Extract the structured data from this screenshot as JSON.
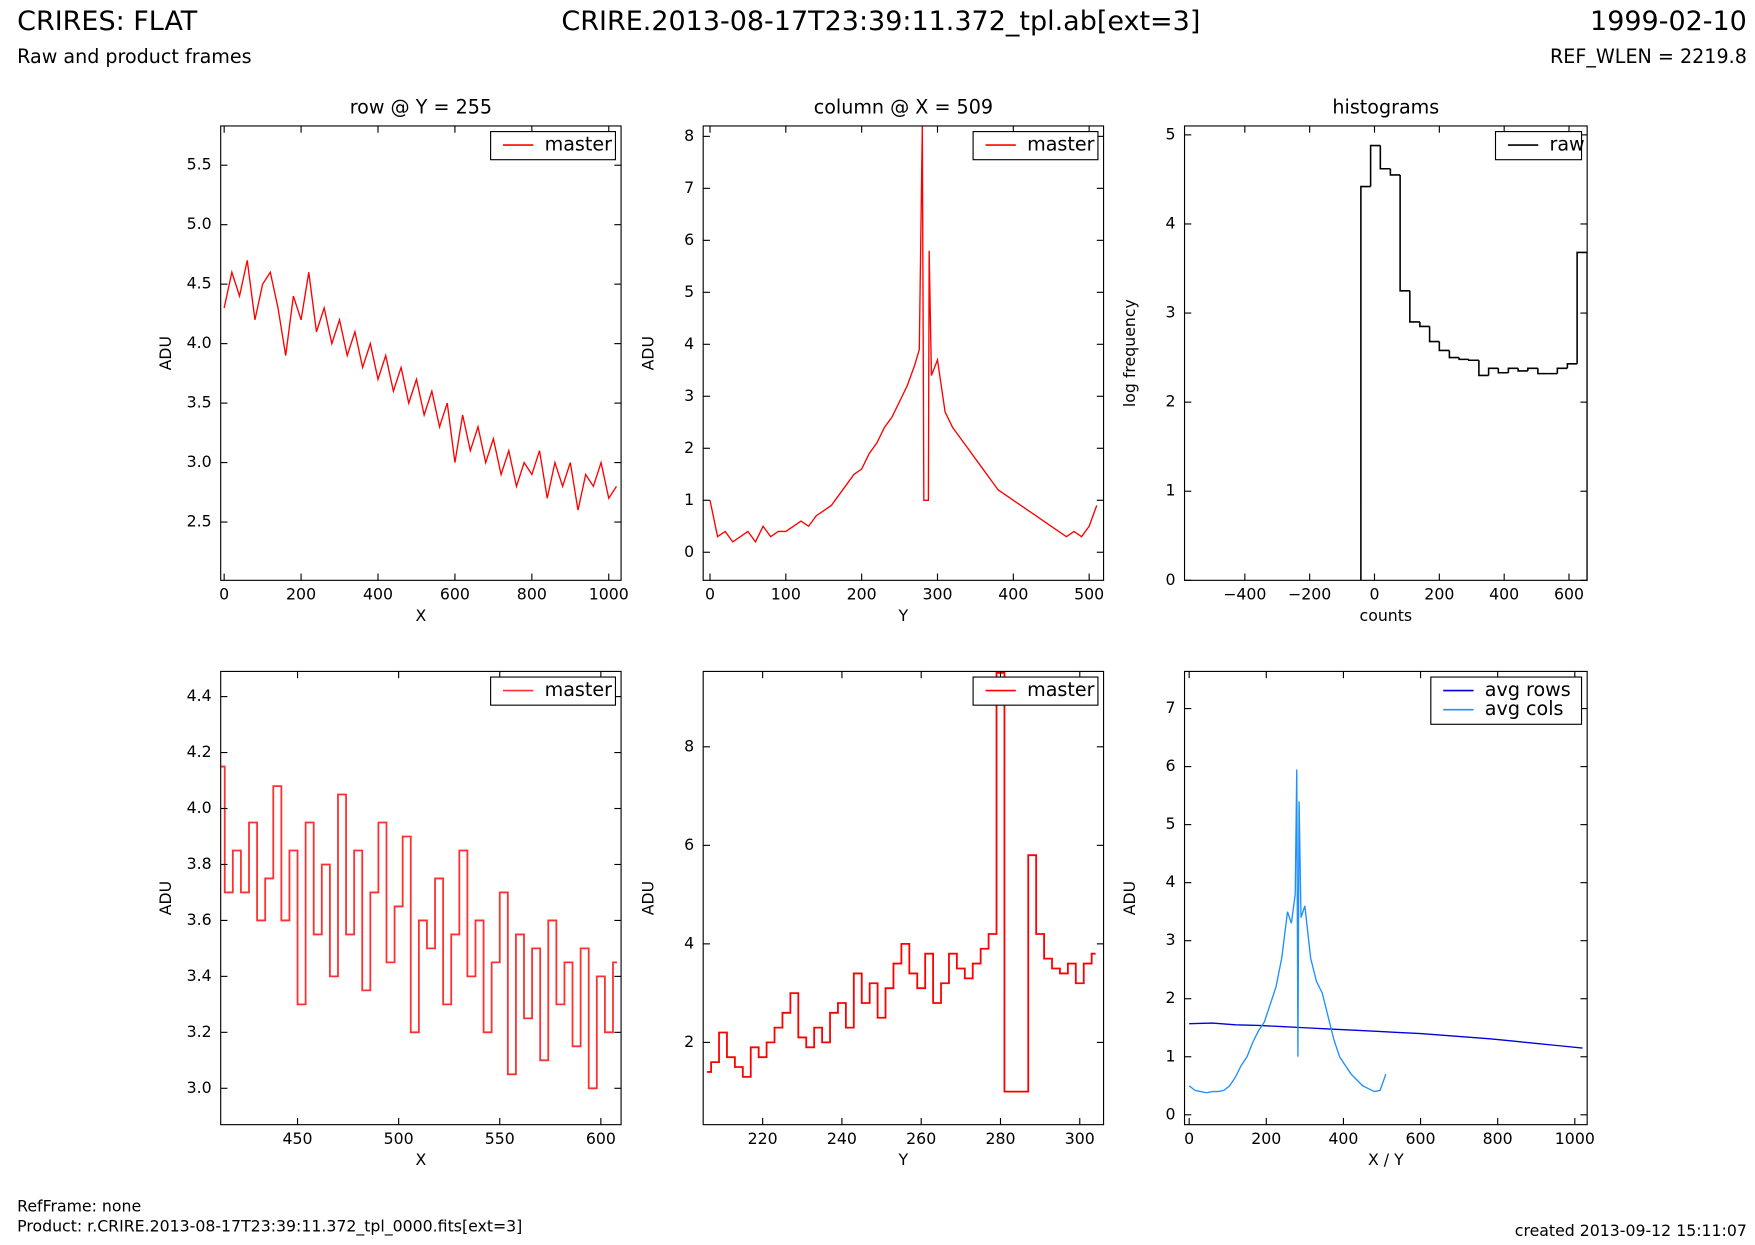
{
  "header": {
    "title": "CRIRES: FLAT",
    "subtitle": "Raw and product frames",
    "file": "CRIRE.2013-08-17T23:39:11.372_tpl.ab[ext=3]",
    "date": "1999-02-10",
    "ref_wlen": "REF_WLEN = 2219.8"
  },
  "footer": {
    "refframe": "RefFrame: none",
    "product": "Product: r.CRIRE.2013-08-17T23:39:11.372_tpl_0000.fits[ext=3]",
    "created": "created 2013-09-12 15:11:07"
  },
  "chart_data": [
    {
      "type": "line",
      "title": "row @ Y = 255",
      "xlabel": "X",
      "ylabel": "ADU",
      "xlim": [
        -9,
        1032
      ],
      "ylim": [
        2.01,
        5.83
      ],
      "xticks": [
        0,
        200,
        400,
        600,
        800,
        1000
      ],
      "yticks": [
        2.5,
        {
          "value": 3,
          "label": "3.0"
        },
        3.5,
        {
          "value": 4,
          "label": "4.0"
        },
        4.5,
        {
          "value": 5,
          "label": "5.0"
        },
        5.5
      ],
      "legend": "upper right",
      "series": [
        {
          "name": "master",
          "color": "#ff0000",
          "x": [
            0,
            20,
            40,
            60,
            80,
            100,
            120,
            140,
            160,
            180,
            200,
            220,
            240,
            260,
            280,
            300,
            320,
            340,
            360,
            380,
            400,
            420,
            440,
            460,
            480,
            500,
            520,
            540,
            560,
            580,
            600,
            620,
            640,
            660,
            680,
            700,
            720,
            740,
            760,
            780,
            800,
            820,
            840,
            860,
            880,
            900,
            920,
            940,
            960,
            980,
            1000,
            1020
          ],
          "values": [
            4.3,
            4.6,
            4.4,
            4.7,
            4.2,
            4.5,
            4.6,
            4.3,
            3.9,
            4.4,
            4.2,
            4.6,
            4.1,
            4.3,
            4.0,
            4.2,
            3.9,
            4.1,
            3.8,
            4.0,
            3.7,
            3.9,
            3.6,
            3.8,
            3.5,
            3.7,
            3.4,
            3.6,
            3.3,
            3.5,
            3.0,
            3.4,
            3.1,
            3.3,
            3.0,
            3.2,
            2.9,
            3.1,
            2.8,
            3.0,
            2.9,
            3.1,
            2.7,
            3.0,
            2.8,
            3.0,
            2.6,
            2.9,
            2.8,
            3.0,
            2.7,
            2.8
          ]
        }
      ]
    },
    {
      "type": "line",
      "title": "column @ X = 509",
      "xlabel": "Y",
      "ylabel": "ADU",
      "xlim": [
        -9,
        519
      ],
      "ylim": [
        -0.54,
        8.2
      ],
      "xticks": [
        0,
        100,
        200,
        300,
        400,
        500
      ],
      "yticks": [
        0,
        1,
        2,
        3,
        4,
        5,
        6,
        7,
        8
      ],
      "legend": "upper right",
      "series": [
        {
          "name": "master",
          "color": "#ff0000",
          "x": [
            0,
            10,
            20,
            30,
            40,
            50,
            60,
            70,
            80,
            90,
            100,
            110,
            120,
            130,
            140,
            150,
            160,
            170,
            180,
            190,
            200,
            210,
            220,
            230,
            240,
            250,
            260,
            270,
            276,
            280,
            282,
            288,
            289,
            292,
            300,
            310,
            320,
            330,
            340,
            350,
            360,
            370,
            380,
            390,
            400,
            410,
            420,
            430,
            440,
            450,
            460,
            470,
            480,
            490,
            500,
            510
          ],
          "values": [
            1.0,
            0.3,
            0.4,
            0.2,
            0.3,
            0.4,
            0.2,
            0.5,
            0.3,
            0.4,
            0.4,
            0.5,
            0.6,
            0.5,
            0.7,
            0.8,
            0.9,
            1.1,
            1.3,
            1.5,
            1.6,
            1.9,
            2.1,
            2.4,
            2.6,
            2.9,
            3.2,
            3.6,
            3.9,
            8.2,
            1.0,
            1.0,
            5.8,
            3.4,
            3.7,
            2.7,
            2.4,
            2.2,
            2.0,
            1.8,
            1.6,
            1.4,
            1.2,
            1.1,
            1.0,
            0.9,
            0.8,
            0.7,
            0.6,
            0.5,
            0.4,
            0.3,
            0.4,
            0.3,
            0.5,
            0.9
          ]
        }
      ]
    },
    {
      "type": "histogram",
      "title": "histograms",
      "xlabel": "counts",
      "ylabel": "log frequency",
      "xlim": [
        -586,
        656
      ],
      "ylim": [
        0,
        5.1
      ],
      "xticks": [
        {
          "value": -400,
          "label": "−400"
        },
        {
          "value": -200,
          "label": "−200"
        },
        0,
        200,
        400,
        600
      ],
      "yticks": [
        0,
        1,
        2,
        3,
        4,
        5
      ],
      "legend": "upper right",
      "bins": [
        -42,
        -12,
        18,
        49,
        79,
        109,
        140,
        170,
        200,
        231,
        261,
        291,
        322,
        352,
        382,
        413,
        443,
        473,
        504,
        534,
        564,
        595,
        625,
        656
      ],
      "series": [
        {
          "name": "raw",
          "color": "#000000",
          "values": [
            4.42,
            4.88,
            4.62,
            4.55,
            3.25,
            2.9,
            2.85,
            2.68,
            2.58,
            2.5,
            2.48,
            2.47,
            2.3,
            2.38,
            2.33,
            2.38,
            2.35,
            2.38,
            2.32,
            2.32,
            2.38,
            2.43,
            3.68
          ]
        }
      ]
    },
    {
      "type": "line",
      "drawstyle": "steps",
      "xlabel": "X",
      "ylabel": "ADU",
      "xlim": [
        412,
        610
      ],
      "ylim": [
        2.87,
        4.49
      ],
      "xticks": [
        450,
        500,
        550,
        600
      ],
      "yticks": [
        {
          "value": 3,
          "label": "3.0"
        },
        3.2,
        3.4,
        3.6,
        3.8,
        {
          "value": 4,
          "label": "4.0"
        },
        4.2,
        4.4
      ],
      "legend": "upper right",
      "series": [
        {
          "name": "master",
          "color": "#ff3030",
          "x": [
            412,
            416,
            420,
            424,
            428,
            432,
            436,
            440,
            444,
            448,
            452,
            456,
            460,
            464,
            468,
            472,
            476,
            480,
            484,
            488,
            492,
            496,
            500,
            504,
            508,
            512,
            516,
            520,
            524,
            528,
            532,
            536,
            540,
            544,
            548,
            552,
            556,
            560,
            564,
            568,
            572,
            576,
            580,
            584,
            588,
            592,
            596,
            600,
            604,
            608
          ],
          "values": [
            4.15,
            3.7,
            3.85,
            3.7,
            3.95,
            3.6,
            3.75,
            4.08,
            3.6,
            3.85,
            3.3,
            3.95,
            3.55,
            3.8,
            3.4,
            4.05,
            3.55,
            3.85,
            3.35,
            3.7,
            3.95,
            3.45,
            3.65,
            3.9,
            3.2,
            3.6,
            3.5,
            3.75,
            3.3,
            3.55,
            3.85,
            3.4,
            3.6,
            3.2,
            3.45,
            3.7,
            3.05,
            3.55,
            3.25,
            3.5,
            3.1,
            3.6,
            3.3,
            3.45,
            3.15,
            3.5,
            3.0,
            3.4,
            3.2,
            3.45
          ]
        }
      ]
    },
    {
      "type": "line",
      "drawstyle": "steps",
      "xlabel": "Y",
      "ylabel": "ADU",
      "xlim": [
        205,
        306
      ],
      "ylim": [
        0.33,
        9.53
      ],
      "xticks": [
        220,
        240,
        260,
        280,
        300
      ],
      "yticks": [
        2,
        4,
        6,
        8
      ],
      "legend": "upper right",
      "series": [
        {
          "name": "master",
          "color": "#ff0000",
          "x": [
            206,
            208,
            210,
            212,
            214,
            216,
            218,
            220,
            222,
            224,
            226,
            228,
            230,
            232,
            234,
            236,
            238,
            240,
            242,
            244,
            246,
            248,
            250,
            252,
            254,
            256,
            258,
            260,
            262,
            264,
            266,
            268,
            270,
            272,
            274,
            276,
            278,
            280,
            282,
            284,
            286,
            288,
            290,
            292,
            294,
            296,
            298,
            300,
            302,
            304
          ],
          "values": [
            1.4,
            1.6,
            2.2,
            1.7,
            1.5,
            1.3,
            1.9,
            1.7,
            2.0,
            2.3,
            2.6,
            3.0,
            2.1,
            1.9,
            2.3,
            2.0,
            2.6,
            2.8,
            2.3,
            3.4,
            2.8,
            3.2,
            2.5,
            3.1,
            3.6,
            4.0,
            3.4,
            3.1,
            3.8,
            2.8,
            3.2,
            3.8,
            3.5,
            3.3,
            3.6,
            3.9,
            4.2,
            9.5,
            1.0,
            1.0,
            1.0,
            5.8,
            4.2,
            3.7,
            3.5,
            3.4,
            3.6,
            3.2,
            3.6,
            3.8
          ]
        }
      ]
    },
    {
      "type": "line",
      "xlabel": "X / Y",
      "ylabel": "ADU",
      "xlim": [
        -12,
        1032
      ],
      "ylim": [
        -0.17,
        7.64
      ],
      "xticks": [
        0,
        200,
        400,
        600,
        800,
        1000
      ],
      "yticks": [
        0,
        1,
        2,
        3,
        4,
        5,
        6,
        7
      ],
      "legend": "upper right",
      "series": [
        {
          "name": "avg rows",
          "color": "#0000dd",
          "x": [
            0,
            60,
            120,
            180,
            240,
            300,
            360,
            420,
            480,
            540,
            600,
            660,
            720,
            780,
            840,
            900,
            960,
            1020
          ],
          "values": [
            1.57,
            1.58,
            1.55,
            1.54,
            1.52,
            1.5,
            1.48,
            1.46,
            1.44,
            1.42,
            1.4,
            1.37,
            1.34,
            1.31,
            1.27,
            1.23,
            1.19,
            1.15
          ]
        },
        {
          "name": "avg cols",
          "color": "#1e90ff",
          "x": [
            0,
            15,
            30,
            45,
            60,
            75,
            90,
            105,
            120,
            135,
            150,
            165,
            180,
            195,
            210,
            225,
            240,
            255,
            265,
            275,
            279,
            282,
            285,
            290,
            300,
            315,
            330,
            345,
            360,
            375,
            390,
            405,
            420,
            435,
            450,
            465,
            480,
            495,
            510
          ],
          "values": [
            0.5,
            0.42,
            0.4,
            0.38,
            0.4,
            0.4,
            0.42,
            0.5,
            0.65,
            0.85,
            1.0,
            1.25,
            1.45,
            1.6,
            1.9,
            2.2,
            2.7,
            3.5,
            3.3,
            3.8,
            5.95,
            1.0,
            5.4,
            3.4,
            3.6,
            2.7,
            2.3,
            2.1,
            1.7,
            1.3,
            1.0,
            0.85,
            0.7,
            0.6,
            0.5,
            0.45,
            0.4,
            0.42,
            0.7
          ]
        }
      ]
    }
  ]
}
